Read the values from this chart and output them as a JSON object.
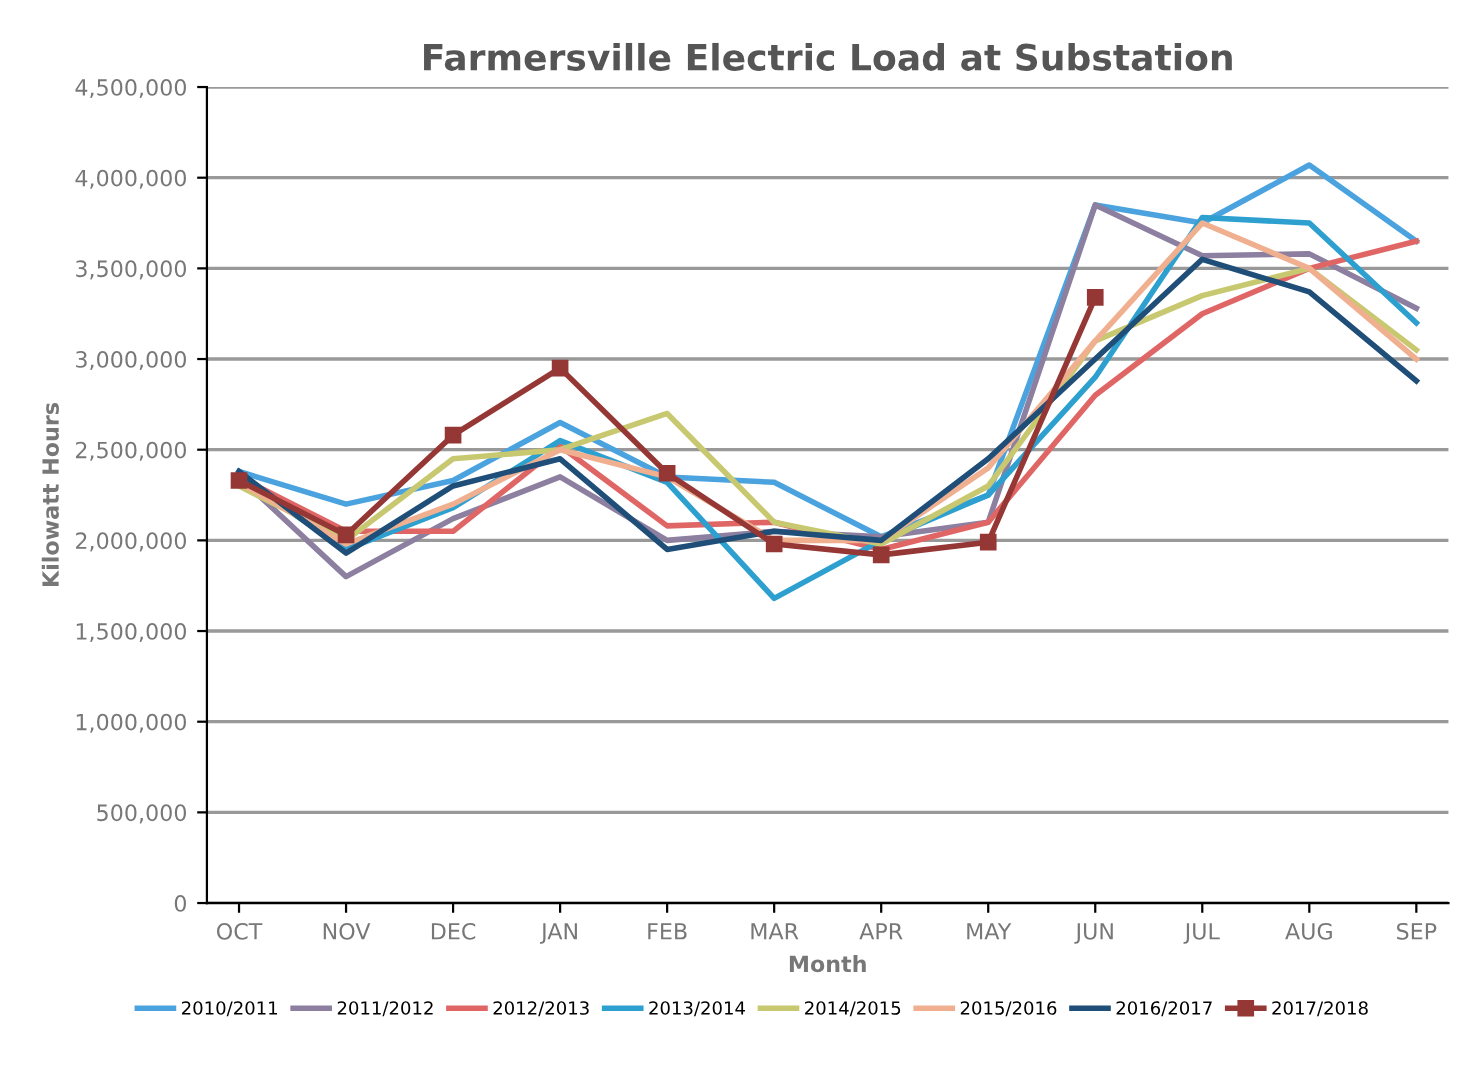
{
  "chart_data": {
    "type": "line",
    "title": "Farmersville Electric Load at Substation",
    "xlabel": "Month",
    "ylabel": "Kilowatt Hours",
    "categories": [
      "OCT",
      "NOV",
      "DEC",
      "JAN",
      "FEB",
      "MAR",
      "APR",
      "MAY",
      "JUN",
      "JUL",
      "AUG",
      "SEP"
    ],
    "ylim": [
      0,
      4500000
    ],
    "yticks": [
      {
        "value": 0,
        "label": "0"
      },
      {
        "value": 500000,
        "label": "500,000"
      },
      {
        "value": 1000000,
        "label": "1,000,000"
      },
      {
        "value": 1500000,
        "label": "1,500,000"
      },
      {
        "value": 2000000,
        "label": "2,000,000"
      },
      {
        "value": 2500000,
        "label": "2,500,000"
      },
      {
        "value": 3000000,
        "label": "3,000,000"
      },
      {
        "value": 3500000,
        "label": "3,500,000"
      },
      {
        "value": 4000000,
        "label": "4,000,000"
      },
      {
        "value": 4500000,
        "label": "4,500,000"
      }
    ],
    "grid": "y",
    "legend": "bottom",
    "line_style": "solid",
    "marker": "none",
    "series": [
      {
        "name": "2010/2011",
        "color": "#4aa3df",
        "values": [
          2380000,
          2200000,
          2330000,
          2650000,
          2350000,
          2320000,
          2020000,
          2250000,
          3850000,
          3750000,
          4070000,
          3650000
        ]
      },
      {
        "name": "2011/2012",
        "color": "#8c7fa0",
        "values": [
          2350000,
          1800000,
          2120000,
          2350000,
          2000000,
          2050000,
          2020000,
          2100000,
          3850000,
          3570000,
          3580000,
          3280000
        ]
      },
      {
        "name": "2012/2013",
        "color": "#e06666",
        "values": [
          2350000,
          2050000,
          2050000,
          2520000,
          2080000,
          2100000,
          1950000,
          2100000,
          2800000,
          3250000,
          3500000,
          3650000
        ]
      },
      {
        "name": "2013/2014",
        "color": "#2ea0d0",
        "values": [
          2350000,
          1950000,
          2180000,
          2550000,
          2320000,
          1680000,
          2000000,
          2250000,
          2900000,
          3780000,
          3750000,
          3200000
        ]
      },
      {
        "name": "2014/2015",
        "color": "#c8c870",
        "values": [
          2300000,
          2000000,
          2450000,
          2500000,
          2700000,
          2100000,
          1980000,
          2300000,
          3100000,
          3350000,
          3500000,
          3050000
        ]
      },
      {
        "name": "2015/2016",
        "color": "#f0b090",
        "values": [
          2320000,
          1980000,
          2200000,
          2500000,
          2350000,
          2000000,
          2000000,
          2400000,
          3100000,
          3750000,
          3500000,
          3000000
        ]
      },
      {
        "name": "2016/2017",
        "color": "#1f4e79",
        "values": [
          2380000,
          1930000,
          2300000,
          2450000,
          1950000,
          2050000,
          2000000,
          2450000,
          3000000,
          3550000,
          3370000,
          2880000
        ]
      },
      {
        "name": "2017/2018",
        "color": "#953735",
        "marker": "square",
        "values": [
          2330000,
          2030000,
          2580000,
          2950000,
          2370000,
          1980000,
          1920000,
          1990000,
          3340000,
          null,
          null,
          null
        ]
      }
    ]
  }
}
